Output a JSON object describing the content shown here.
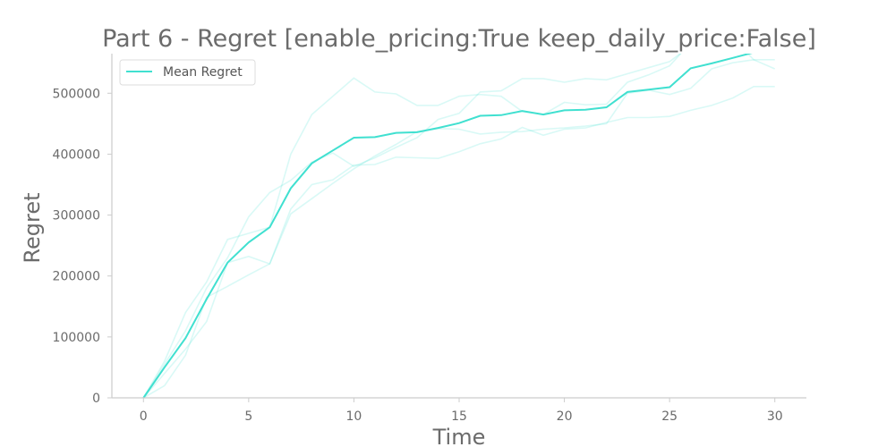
{
  "chart_data": {
    "type": "line",
    "title": "Part 6 - Regret [enable_pricing:True keep_daily_price:False]",
    "xlabel": "Time",
    "ylabel": "Regret",
    "xlim": [
      -1.5,
      31.5
    ],
    "ylim": [
      0,
      565000
    ],
    "xticks": [
      0,
      5,
      10,
      15,
      20,
      25,
      30
    ],
    "yticks": [
      0,
      100000,
      200000,
      300000,
      400000,
      500000
    ],
    "grid": false,
    "legend": {
      "placement": "top-left",
      "entries": [
        "Mean Regret"
      ]
    },
    "colors": {
      "mean": "#40e0d0",
      "runs": "#40e0d0",
      "axis": "#cccccc",
      "text": "#6b6b6b"
    },
    "x": [
      0,
      1,
      2,
      3,
      4,
      5,
      6,
      7,
      8,
      9,
      10,
      11,
      12,
      13,
      14,
      15,
      16,
      17,
      18,
      19,
      20,
      21,
      22,
      23,
      24,
      25,
      26,
      27,
      28,
      29,
      30
    ],
    "series": [
      {
        "name": "Mean Regret",
        "values": [
          0,
          50000,
          98000,
          162000,
          222000,
          255000,
          280000,
          344000,
          385000,
          406000,
          427000,
          428000,
          435000,
          436000,
          443000,
          451000,
          463000,
          464000,
          471000,
          465000,
          472000,
          473000,
          477000,
          502000,
          506000,
          510000,
          541000,
          549000,
          558000,
          567000,
          567000
        ]
      },
      {
        "values": [
          0,
          60000,
          140000,
          190000,
          260000,
          270000,
          280000,
          400000,
          465000,
          495000,
          525000,
          502000,
          499000,
          480000,
          480000,
          495000,
          498000,
          495000,
          470000,
          465000,
          485000,
          481000,
          482000,
          518000,
          530000,
          545000,
          583000,
          585000,
          590000,
          555000,
          540000
        ]
      },
      {
        "values": [
          0,
          55000,
          110000,
          180000,
          230000,
          297000,
          337000,
          357000,
          387000,
          402000,
          380000,
          394000,
          411000,
          427000,
          457000,
          467000,
          502000,
          504000,
          524000,
          524000,
          518000,
          524000,
          522000,
          532000,
          542000,
          552000,
          578000,
          582000,
          572000,
          567000,
          567000
        ]
      },
      {
        "values": [
          0,
          40000,
          80000,
          125000,
          222000,
          232000,
          220000,
          310000,
          350000,
          358000,
          382000,
          383000,
          395000,
          394000,
          393000,
          404000,
          417000,
          425000,
          444000,
          431000,
          441000,
          443000,
          452000,
          460000,
          460000,
          462000,
          472000,
          480000,
          492000,
          511000,
          511000
        ]
      },
      {
        "values": [
          0,
          20000,
          70000,
          165000,
          183000,
          202000,
          220000,
          302000,
          327000,
          352000,
          376000,
          397000,
          416000,
          437000,
          442000,
          441000,
          433000,
          436000,
          437000,
          441000,
          443000,
          446000,
          450000,
          500000,
          505000,
          498000,
          508000,
          540000,
          550000,
          555000,
          555000
        ]
      }
    ]
  }
}
